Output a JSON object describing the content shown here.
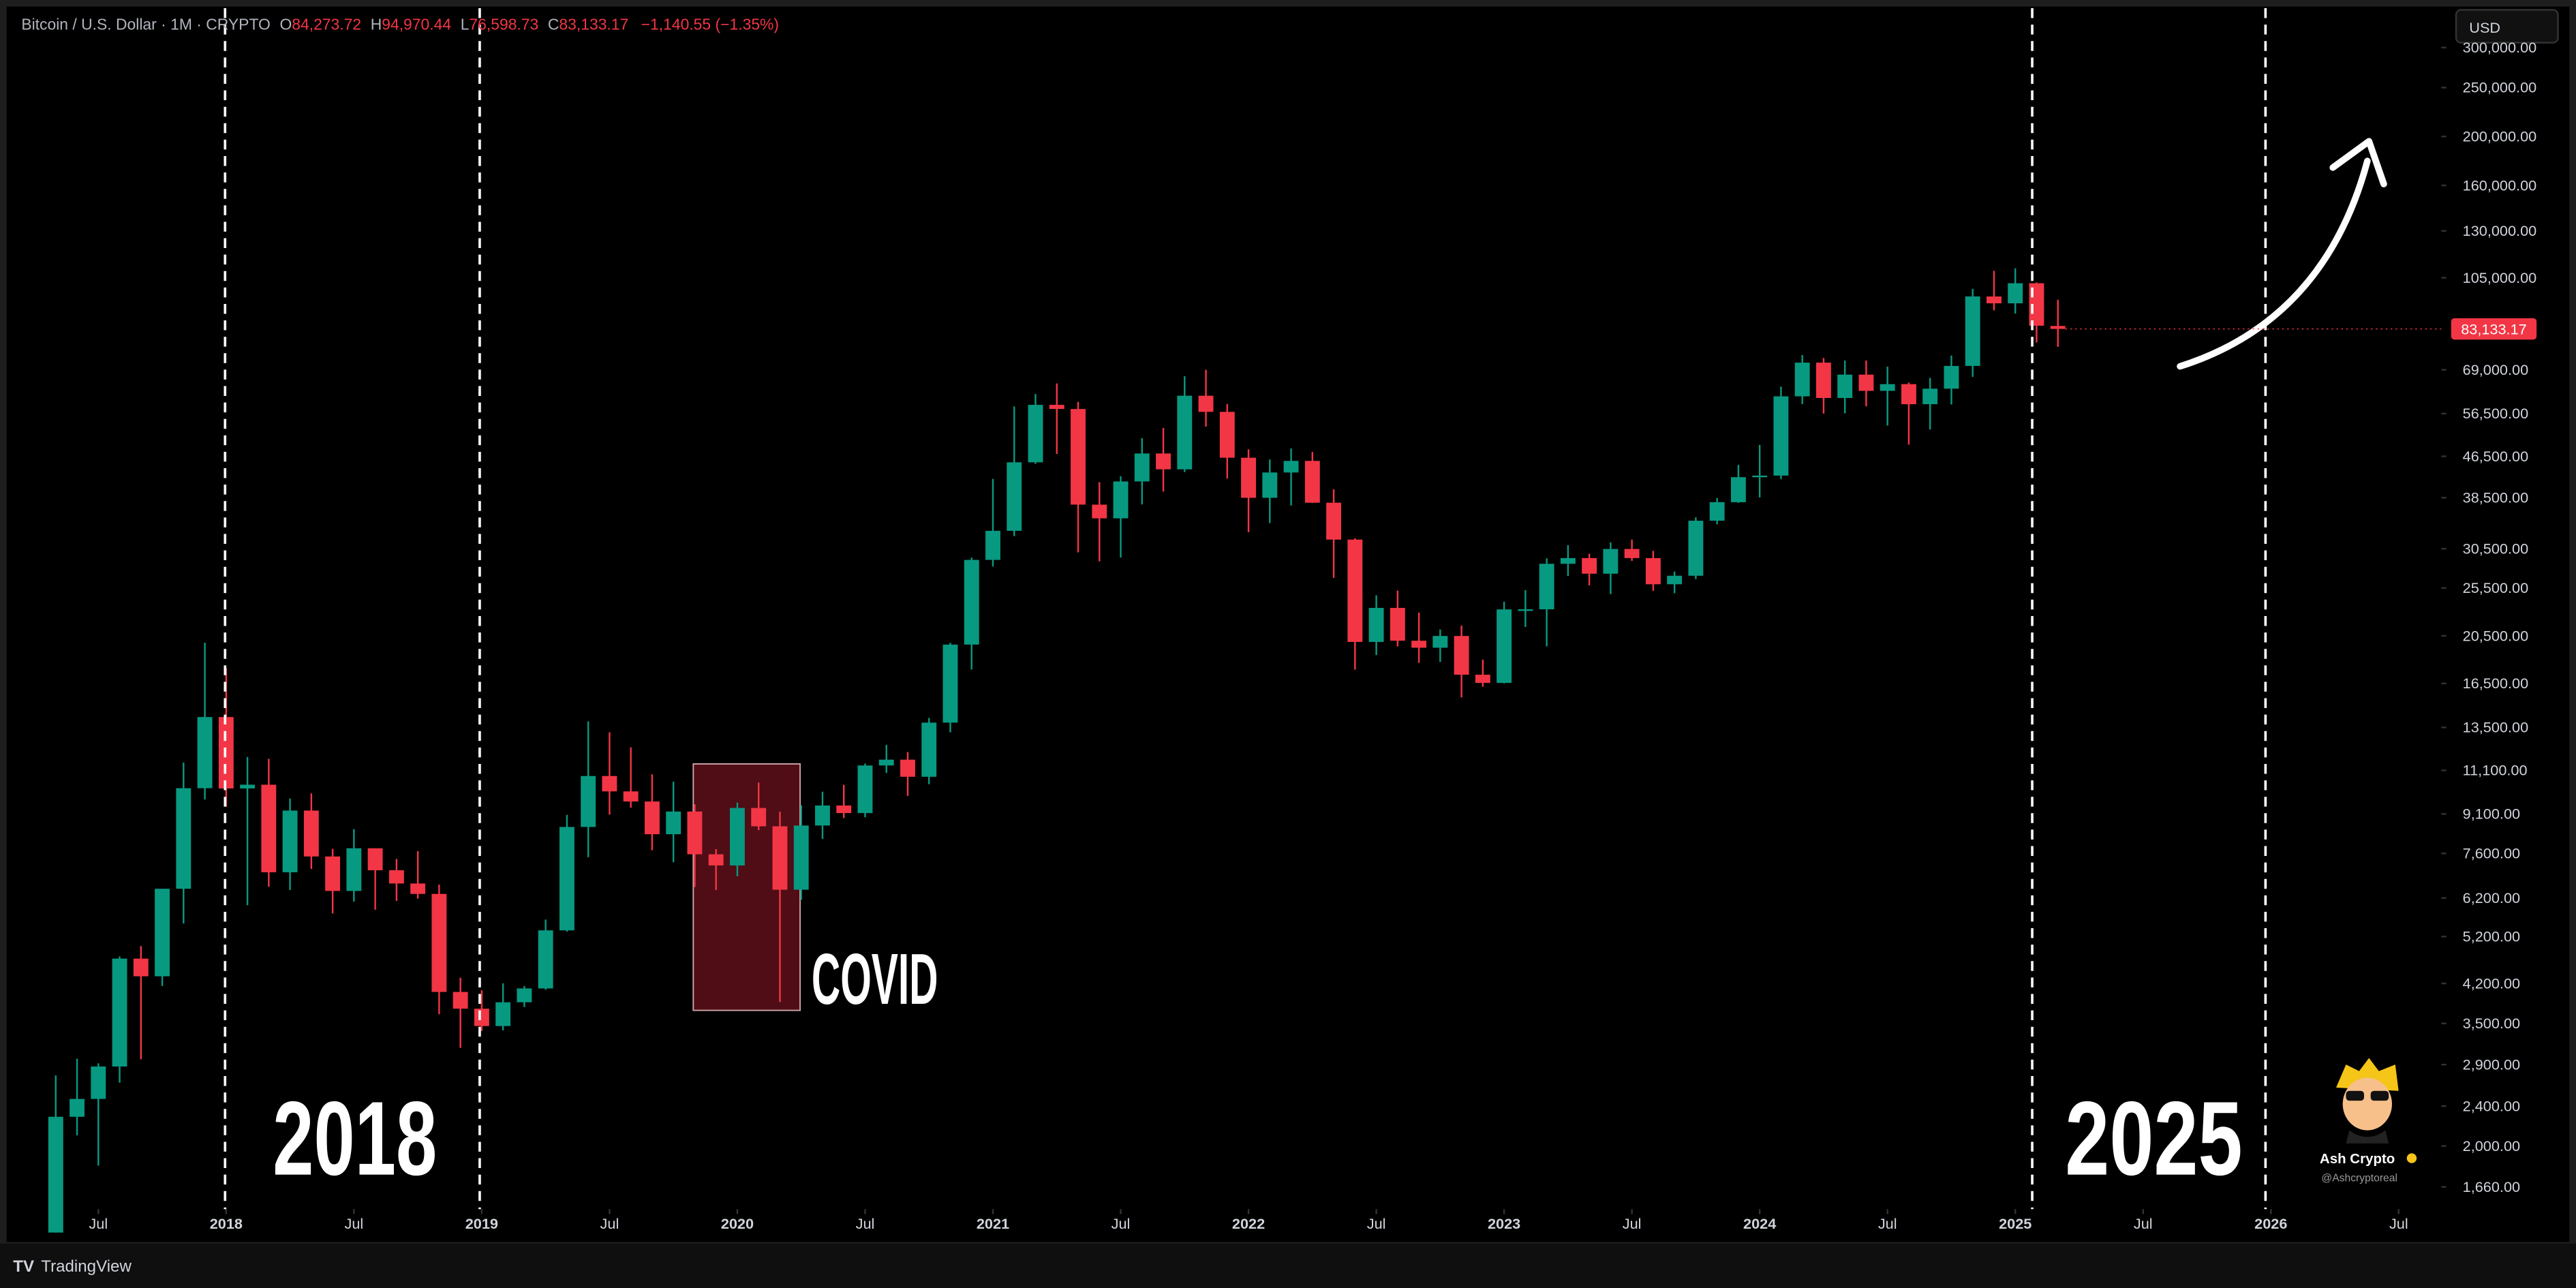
{
  "chart_data": {
    "type": "candlestick",
    "header": {
      "title": "Bitcoin / U.S. Dollar · 1M · CRYPTO",
      "letters": [
        "O",
        "H",
        "L",
        "C"
      ],
      "open_label": "84,273.72",
      "high_label": "94,970.44",
      "low_label": "76,598.73",
      "close_label": "83,133.17",
      "change_label": "−1,140.55 (−1.35%)"
    },
    "currency": "USD",
    "last_price_label": "83,133.17",
    "brand": "TradingView",
    "watermark": {
      "name": "Ash Crypto",
      "handle": "@Ashcryptoreal"
    },
    "annotations": [
      "2018",
      "2025",
      "COVID"
    ],
    "up_color": "#089981",
    "down_color": "#f23645",
    "log_scale": true,
    "grid": false,
    "x": [
      "2017-05",
      "2017-06",
      "2017-07",
      "2017-08",
      "2017-09",
      "2017-10",
      "2017-11",
      "2017-12",
      "2018-01",
      "2018-02",
      "2018-03",
      "2018-04",
      "2018-05",
      "2018-06",
      "2018-07",
      "2018-08",
      "2018-09",
      "2018-10",
      "2018-11",
      "2018-12",
      "2019-01",
      "2019-02",
      "2019-03",
      "2019-04",
      "2019-05",
      "2019-06",
      "2019-07",
      "2019-08",
      "2019-09",
      "2019-10",
      "2019-11",
      "2019-12",
      "2020-01",
      "2020-02",
      "2020-03",
      "2020-04",
      "2020-05",
      "2020-06",
      "2020-07",
      "2020-08",
      "2020-09",
      "2020-10",
      "2020-11",
      "2020-12",
      "2021-01",
      "2021-02",
      "2021-03",
      "2021-04",
      "2021-05",
      "2021-06",
      "2021-07",
      "2021-08",
      "2021-09",
      "2021-10",
      "2021-11",
      "2021-12",
      "2022-01",
      "2022-02",
      "2022-03",
      "2022-04",
      "2022-05",
      "2022-06",
      "2022-07",
      "2022-08",
      "2022-09",
      "2022-10",
      "2022-11",
      "2022-12",
      "2023-01",
      "2023-02",
      "2023-03",
      "2023-04",
      "2023-05",
      "2023-06",
      "2023-07",
      "2023-08",
      "2023-09",
      "2023-10",
      "2023-11",
      "2023-12",
      "2024-01",
      "2024-02",
      "2024-03",
      "2024-04",
      "2024-05",
      "2024-06",
      "2024-07",
      "2024-08",
      "2024-09",
      "2024-10",
      "2024-11",
      "2024-12",
      "2025-01",
      "2025-02",
      "2025-03"
    ],
    "open": [
      1348,
      2286,
      2480,
      2875,
      4703,
      4339,
      6468,
      10233,
      14156,
      10221,
      10397,
      6973,
      9240,
      7494,
      6404,
      7780,
      7037,
      6625,
      6318,
      4040,
      3743,
      3458,
      3854,
      4105,
      5350,
      8574,
      10817,
      10085,
      9630,
      8294,
      9199,
      7569,
      7194,
      9350,
      8600,
      6440,
      8630,
      9455,
      9135,
      11350,
      11655,
      10780,
      13800,
      19700,
      28990,
      33100,
      45240,
      58800,
      57700,
      37300,
      35040,
      41460,
      47100,
      43820,
      61300,
      56950,
      46200,
      38480,
      43190,
      45540,
      37630,
      31800,
      19940,
      23290,
      20050,
      19420,
      20490,
      17170,
      16540,
      23130,
      23140,
      28480,
      29230,
      27220,
      30470,
      29230,
      25940,
      26970,
      34660,
      37720,
      42280,
      42580,
      61130,
      71290,
      60670,
      67490,
      62680,
      64630,
      58970,
      63300,
      70220,
      96400,
      93430,
      102400,
      84273.72
    ],
    "high": [
      2760,
      2980,
      2916,
      4750,
      4980,
      6470,
      11500,
      19870,
      17700,
      11800,
      11700,
      9760,
      9990,
      7760,
      8490,
      7780,
      7410,
      7680,
      6590,
      4310,
      4070,
      4200,
      4150,
      5620,
      9060,
      13880,
      13200,
      12330,
      10900,
      10540,
      9510,
      7750,
      9580,
      10500,
      9190,
      9470,
      10070,
      10390,
      11450,
      12470,
      12070,
      14100,
      19860,
      29300,
      41950,
      58350,
      61780,
      64850,
      59590,
      41330,
      42450,
      50500,
      52920,
      67000,
      69000,
      59050,
      47990,
      45820,
      48190,
      47440,
      40000,
      31990,
      24670,
      25200,
      22800,
      21100,
      21480,
      18390,
      23960,
      25250,
      29190,
      31000,
      29820,
      31390,
      31800,
      30200,
      27490,
      35200,
      38450,
      44700,
      48970,
      63910,
      73800,
      72800,
      71950,
      71980,
      70000,
      65100,
      66500,
      73620,
      99800,
      108350,
      109590,
      102750,
      94970.44
    ],
    "low": [
      1348,
      2100,
      1830,
      2670,
      2972,
      4150,
      5520,
      9720,
      9400,
      6000,
      6530,
      6430,
      7080,
      5780,
      6100,
      5880,
      6120,
      6180,
      3650,
      3130,
      3380,
      3390,
      3770,
      4080,
      5320,
      7470,
      9070,
      9360,
      7710,
      7300,
      6520,
      6430,
      6850,
      8450,
      3860,
      6150,
      8120,
      8930,
      8960,
      10970,
      9880,
      10420,
      13200,
      17580,
      28130,
      32300,
      44950,
      47000,
      30000,
      28800,
      29300,
      37330,
      39600,
      43280,
      53250,
      42000,
      32900,
      34300,
      37150,
      37580,
      26700,
      17570,
      18780,
      19540,
      18130,
      18200,
      15480,
      16260,
      16500,
      21350,
      19550,
      26940,
      25810,
      24800,
      28860,
      25170,
      24900,
      26560,
      34100,
      37600,
      38550,
      41880,
      59000,
      56500,
      56550,
      58400,
      53500,
      49050,
      52550,
      58900,
      66800,
      90500,
      89160,
      78170,
      76598.73
    ],
    "close": [
      2286,
      2480,
      2875,
      4703,
      4339,
      6468,
      10233,
      14156,
      10221,
      10397,
      6973,
      9240,
      7494,
      6404,
      7780,
      7037,
      6625,
      6318,
      4040,
      3743,
      3458,
      3854,
      4105,
      5350,
      8574,
      10817,
      10085,
      9630,
      8294,
      9199,
      7569,
      7194,
      9350,
      8600,
      6440,
      8630,
      9455,
      9135,
      11350,
      11655,
      10780,
      13800,
      19700,
      28990,
      33100,
      45240,
      58800,
      57700,
      37300,
      35040,
      41460,
      47100,
      43820,
      61300,
      56950,
      46200,
      38480,
      43190,
      45540,
      37630,
      31800,
      19940,
      23290,
      20050,
      19420,
      20490,
      17170,
      16540,
      23130,
      23140,
      28480,
      29230,
      27220,
      30470,
      29230,
      25940,
      26970,
      34660,
      37720,
      42280,
      42580,
      61130,
      71290,
      60670,
      67490,
      62680,
      64630,
      58970,
      63300,
      70220,
      96400,
      93430,
      102400,
      84370,
      83133.17
    ],
    "xlim": [
      "2017-03",
      "2026-09"
    ],
    "xticks": [
      {
        "value": "2017-07",
        "label": "Jul"
      },
      {
        "value": "2018-01",
        "label": "2018"
      },
      {
        "value": "2018-07",
        "label": "Jul"
      },
      {
        "value": "2019-01",
        "label": "2019"
      },
      {
        "value": "2019-07",
        "label": "Jul"
      },
      {
        "value": "2020-01",
        "label": "2020"
      },
      {
        "value": "2020-07",
        "label": "Jul"
      },
      {
        "value": "2021-01",
        "label": "2021"
      },
      {
        "value": "2021-07",
        "label": "Jul"
      },
      {
        "value": "2022-01",
        "label": "2022"
      },
      {
        "value": "2022-07",
        "label": "Jul"
      },
      {
        "value": "2023-01",
        "label": "2023"
      },
      {
        "value": "2023-07",
        "label": "Jul"
      },
      {
        "value": "2024-01",
        "label": "2024"
      },
      {
        "value": "2024-07",
        "label": "Jul"
      },
      {
        "value": "2025-01",
        "label": "2025"
      },
      {
        "value": "2025-07",
        "label": "Jul"
      },
      {
        "value": "2026-01",
        "label": "2026"
      },
      {
        "value": "2026-07",
        "label": "Jul"
      }
    ],
    "ylim": [
      1500,
      359000
    ],
    "yticks": [
      {
        "value": 300000,
        "label": "300,000.00"
      },
      {
        "value": 250000,
        "label": "250,000.00"
      },
      {
        "value": 200000,
        "label": "200,000.00"
      },
      {
        "value": 160000,
        "label": "160,000.00"
      },
      {
        "value": 130000,
        "label": "130,000.00"
      },
      {
        "value": 105000,
        "label": "105,000.00"
      },
      {
        "value": 69000,
        "label": "69,000.00"
      },
      {
        "value": 56500,
        "label": "56,500.00"
      },
      {
        "value": 46500,
        "label": "46,500.00"
      },
      {
        "value": 38500,
        "label": "38,500.00"
      },
      {
        "value": 30500,
        "label": "30,500.00"
      },
      {
        "value": 25500,
        "label": "25,500.00"
      },
      {
        "value": 20500,
        "label": "20,500.00"
      },
      {
        "value": 16500,
        "label": "16,500.00"
      },
      {
        "value": 13500,
        "label": "13,500.00"
      },
      {
        "value": 11100,
        "label": "11,100.00"
      },
      {
        "value": 9100,
        "label": "9,100.00"
      },
      {
        "value": 7600,
        "label": "7,600.00"
      },
      {
        "value": 6200,
        "label": "6,200.00"
      },
      {
        "value": 5200,
        "label": "5,200.00"
      },
      {
        "value": 4200,
        "label": "4,200.00"
      },
      {
        "value": 3500,
        "label": "3,500.00"
      },
      {
        "value": 2900,
        "label": "2,900.00"
      },
      {
        "value": 2400,
        "label": "2,400.00"
      },
      {
        "value": 2000,
        "label": "2,000.00"
      },
      {
        "value": 1660,
        "label": "1,660.00"
      }
    ]
  }
}
